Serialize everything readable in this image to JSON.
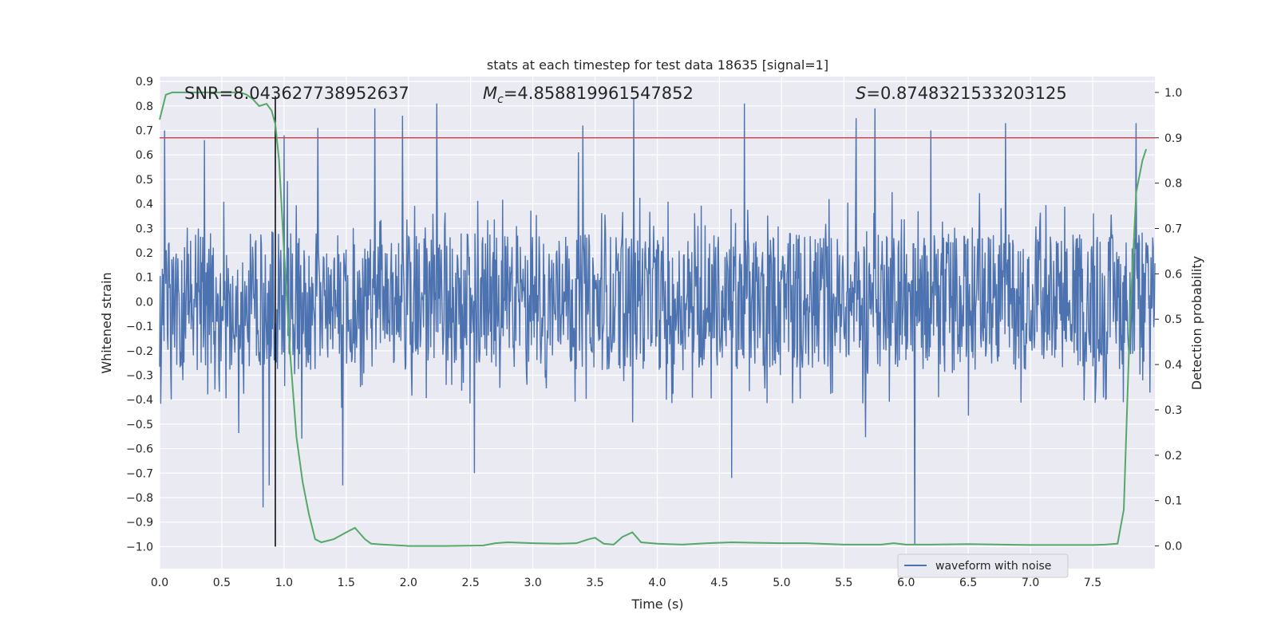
{
  "chart_data": {
    "type": "line",
    "title": "stats at each timestep for test data 18635 [signal=1]",
    "xlabel": "Time (s)",
    "ylabel": "Whitened strain",
    "y2label": "Detection probability",
    "xlim": [
      0.0,
      8.0
    ],
    "ylim": [
      -1.09,
      0.92
    ],
    "y2lim": [
      -0.05,
      1.035
    ],
    "x_ticks": [
      "0.0",
      "0.5",
      "1.0",
      "1.5",
      "2.0",
      "2.5",
      "3.0",
      "3.5",
      "4.0",
      "4.5",
      "5.0",
      "5.5",
      "6.0",
      "6.5",
      "7.0",
      "7.5"
    ],
    "y_ticks": [
      "0.9",
      "0.8",
      "0.7",
      "0.6",
      "0.5",
      "0.4",
      "0.3",
      "0.2",
      "0.1",
      "0.0",
      "−0.1",
      "−0.2",
      "−0.3",
      "−0.4",
      "−0.5",
      "−0.6",
      "−0.7",
      "−0.8",
      "−0.9",
      "−1.0"
    ],
    "y2_ticks": [
      "0.0",
      "0.1",
      "0.2",
      "0.3",
      "0.4",
      "0.5",
      "0.6",
      "0.7",
      "0.8",
      "0.9",
      "1.0"
    ],
    "annotations": {
      "snr": "SNR=8.043627738952637",
      "mc_symbol": "M",
      "mc_sub": "c",
      "mc_value": "=4.858819961547852",
      "s_symbol": "S",
      "s_value": "=0.8748321533203125"
    },
    "legend": {
      "placement": "lower-center-right",
      "entries": [
        "waveform with noise"
      ]
    },
    "threshold_line": {
      "y2": 0.9,
      "color": "#c44e52"
    },
    "vertical_line": {
      "x": 0.93,
      "y_from": -1.0,
      "y_to": 0.84,
      "color": "#000000"
    },
    "waveform": {
      "name": "waveform with noise",
      "color": "#4c72b0",
      "x_range": [
        0.0,
        8.0
      ],
      "typical_envelope": 0.28,
      "noise_amplitude": 0.42,
      "spikes": [
        {
          "x": 0.04,
          "y": 0.7
        },
        {
          "x": 0.36,
          "y": 0.66
        },
        {
          "x": 0.83,
          "y": -0.84
        },
        {
          "x": 0.88,
          "y": -0.75
        },
        {
          "x": 1.0,
          "y": 0.68
        },
        {
          "x": 1.27,
          "y": 0.71
        },
        {
          "x": 1.47,
          "y": -0.75
        },
        {
          "x": 1.73,
          "y": 0.79
        },
        {
          "x": 1.95,
          "y": 0.76
        },
        {
          "x": 2.23,
          "y": 0.81
        },
        {
          "x": 2.53,
          "y": -0.7
        },
        {
          "x": 3.4,
          "y": 0.72
        },
        {
          "x": 3.81,
          "y": 0.83
        },
        {
          "x": 4.6,
          "y": -0.72
        },
        {
          "x": 4.7,
          "y": 0.81
        },
        {
          "x": 5.6,
          "y": 0.75
        },
        {
          "x": 5.75,
          "y": 0.79
        },
        {
          "x": 6.07,
          "y": -0.99
        },
        {
          "x": 6.2,
          "y": 0.7
        },
        {
          "x": 6.8,
          "y": 0.73
        },
        {
          "x": 7.85,
          "y": 0.73
        }
      ]
    },
    "detection_probability": {
      "color": "#55a868",
      "x": [
        0.0,
        0.05,
        0.1,
        0.2,
        0.3,
        0.5,
        0.6,
        0.65,
        0.7,
        0.75,
        0.8,
        0.86,
        0.9,
        0.93,
        0.96,
        1.0,
        1.05,
        1.1,
        1.15,
        1.2,
        1.25,
        1.3,
        1.4,
        1.5,
        1.57,
        1.65,
        1.7,
        1.8,
        2.0,
        2.3,
        2.6,
        2.7,
        2.8,
        3.0,
        3.2,
        3.35,
        3.45,
        3.5,
        3.57,
        3.65,
        3.72,
        3.8,
        3.87,
        4.0,
        4.2,
        4.4,
        4.6,
        4.8,
        5.0,
        5.2,
        5.5,
        5.8,
        5.9,
        6.0,
        6.2,
        6.5,
        7.0,
        7.5,
        7.6,
        7.7,
        7.75,
        7.8,
        7.85,
        7.9,
        7.93
      ],
      "y": [
        0.94,
        0.995,
        1.0,
        1.0,
        1.0,
        1.0,
        1.0,
        1.0,
        0.995,
        0.985,
        0.97,
        0.975,
        0.96,
        0.93,
        0.85,
        0.65,
        0.42,
        0.24,
        0.14,
        0.07,
        0.015,
        0.008,
        0.015,
        0.03,
        0.04,
        0.015,
        0.005,
        0.003,
        0.0,
        0.0,
        0.001,
        0.006,
        0.008,
        0.006,
        0.005,
        0.006,
        0.015,
        0.018,
        0.005,
        0.003,
        0.02,
        0.03,
        0.008,
        0.005,
        0.003,
        0.006,
        0.008,
        0.007,
        0.006,
        0.006,
        0.003,
        0.003,
        0.006,
        0.003,
        0.003,
        0.004,
        0.002,
        0.002,
        0.003,
        0.005,
        0.08,
        0.5,
        0.78,
        0.85,
        0.875
      ]
    }
  }
}
